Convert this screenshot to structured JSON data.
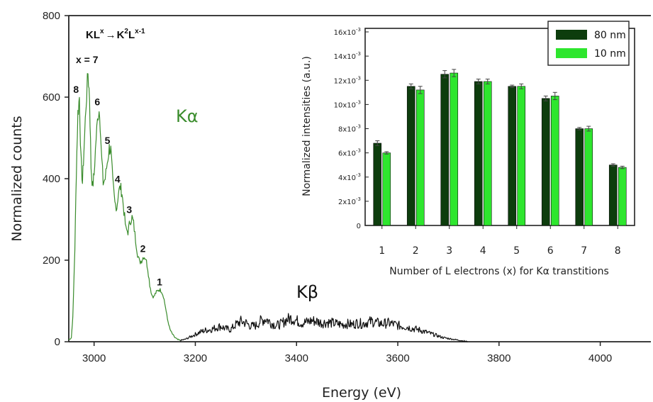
{
  "chart_data": [
    {
      "type": "line",
      "xlabel": "Energy (eV)",
      "ylabel": "Normalized counts",
      "xlim": [
        2950,
        4100
      ],
      "ylim": [
        0,
        800
      ],
      "x_ticks": [
        "3000",
        "3200",
        "3400",
        "3600",
        "3800",
        "4000"
      ],
      "y_ticks": [
        "0",
        "200",
        "400",
        "600",
        "800"
      ],
      "annotations": {
        "transition_prefix": "KL",
        "transition_prefix_sup": "x",
        "transition_arrow": "→",
        "transition_result": "K",
        "transition_result_sup": "2",
        "transition_result_mid": "L",
        "transition_result_sup2": "x-1",
        "x_equals": "x = 7",
        "ka_label": "Kα",
        "kb_label": "Kβ"
      },
      "peak_labels": [
        {
          "label": "8",
          "x": 2970,
          "y": 600
        },
        {
          "label": "6",
          "x": 3012,
          "y": 570
        },
        {
          "label": "5",
          "x": 3032,
          "y": 475
        },
        {
          "label": "4",
          "x": 3052,
          "y": 380
        },
        {
          "label": "3",
          "x": 3075,
          "y": 305
        },
        {
          "label": "2",
          "x": 3102,
          "y": 210
        },
        {
          "label": "1",
          "x": 3135,
          "y": 128
        }
      ],
      "series": [
        {
          "name": "Kα",
          "color": "#3a8c2c",
          "points": [
            [
              2950,
              5
            ],
            [
              2955,
              10
            ],
            [
              2958,
              60
            ],
            [
              2962,
              230
            ],
            [
              2965,
              420
            ],
            [
              2968,
              560
            ],
            [
              2971,
              600
            ],
            [
              2974,
              450
            ],
            [
              2977,
              390
            ],
            [
              2980,
              470
            ],
            [
              2984,
              580
            ],
            [
              2988,
              660
            ],
            [
              2991,
              600
            ],
            [
              2994,
              430
            ],
            [
              2997,
              380
            ],
            [
              3000,
              410
            ],
            [
              3004,
              500
            ],
            [
              3008,
              560
            ],
            [
              3011,
              570
            ],
            [
              3014,
              470
            ],
            [
              3018,
              390
            ],
            [
              3022,
              400
            ],
            [
              3026,
              440
            ],
            [
              3030,
              475
            ],
            [
              3033,
              470
            ],
            [
              3037,
              390
            ],
            [
              3041,
              340
            ],
            [
              3045,
              330
            ],
            [
              3048,
              365
            ],
            [
              3052,
              380
            ],
            [
              3055,
              365
            ],
            [
              3059,
              320
            ],
            [
              3063,
              275
            ],
            [
              3067,
              270
            ],
            [
              3071,
              295
            ],
            [
              3075,
              305
            ],
            [
              3078,
              290
            ],
            [
              3082,
              250
            ],
            [
              3086,
              215
            ],
            [
              3090,
              195
            ],
            [
              3094,
              200
            ],
            [
              3098,
              210
            ],
            [
              3102,
              205
            ],
            [
              3106,
              180
            ],
            [
              3110,
              140
            ],
            [
              3114,
              115
            ],
            [
              3118,
              110
            ],
            [
              3122,
              120
            ],
            [
              3128,
              128
            ],
            [
              3133,
              125
            ],
            [
              3137,
              112
            ],
            [
              3141,
              85
            ],
            [
              3145,
              55
            ],
            [
              3150,
              30
            ],
            [
              3155,
              18
            ],
            [
              3160,
              10
            ],
            [
              3165,
              5
            ],
            [
              3170,
              3
            ]
          ]
        },
        {
          "name": "Kβ",
          "color": "#111111",
          "points": [
            [
              3170,
              3
            ],
            [
              3180,
              6
            ],
            [
              3190,
              12
            ],
            [
              3200,
              18
            ],
            [
              3210,
              24
            ],
            [
              3220,
              28
            ],
            [
              3230,
              30
            ],
            [
              3240,
              34
            ],
            [
              3250,
              38
            ],
            [
              3260,
              32
            ],
            [
              3270,
              30
            ],
            [
              3280,
              42
            ],
            [
              3290,
              50
            ],
            [
              3300,
              46
            ],
            [
              3310,
              38
            ],
            [
              3320,
              40
            ],
            [
              3330,
              52
            ],
            [
              3340,
              56
            ],
            [
              3350,
              46
            ],
            [
              3360,
              40
            ],
            [
              3370,
              44
            ],
            [
              3380,
              54
            ],
            [
              3390,
              58
            ],
            [
              3400,
              52
            ],
            [
              3410,
              46
            ],
            [
              3420,
              48
            ],
            [
              3430,
              52
            ],
            [
              3440,
              50
            ],
            [
              3450,
              46
            ],
            [
              3460,
              48
            ],
            [
              3470,
              46
            ],
            [
              3480,
              44
            ],
            [
              3490,
              42
            ],
            [
              3500,
              44
            ],
            [
              3510,
              42
            ],
            [
              3520,
              46
            ],
            [
              3530,
              44
            ],
            [
              3540,
              48
            ],
            [
              3550,
              50
            ],
            [
              3560,
              46
            ],
            [
              3570,
              44
            ],
            [
              3580,
              46
            ],
            [
              3590,
              44
            ],
            [
              3600,
              40
            ],
            [
              3610,
              38
            ],
            [
              3620,
              36
            ],
            [
              3630,
              32
            ],
            [
              3640,
              30
            ],
            [
              3650,
              26
            ],
            [
              3660,
              22
            ],
            [
              3670,
              18
            ],
            [
              3680,
              14
            ],
            [
              3690,
              10
            ],
            [
              3700,
              8
            ],
            [
              3710,
              6
            ],
            [
              3720,
              4
            ],
            [
              3730,
              2
            ],
            [
              3738,
              0
            ]
          ]
        }
      ]
    },
    {
      "type": "bar",
      "xlabel": "Number of L electrons (x) for Kα transtitions",
      "ylabel": "Normalized intensities (a.u.)",
      "ylim": [
        0,
        0.016
      ],
      "y_tick_values": [
        0,
        0.002,
        0.004,
        0.006,
        0.008,
        0.01,
        0.012,
        0.014,
        0.016
      ],
      "y_tick_labels": [
        {
          "mantissa": "0",
          "exp": ""
        },
        {
          "mantissa": "2x10",
          "exp": "-3"
        },
        {
          "mantissa": "4x10",
          "exp": "-3"
        },
        {
          "mantissa": "6x10",
          "exp": "-3"
        },
        {
          "mantissa": "8x10",
          "exp": "-3"
        },
        {
          "mantissa": "10x10",
          "exp": "-3"
        },
        {
          "mantissa": "12x10",
          "exp": "-3"
        },
        {
          "mantissa": "14x10",
          "exp": "-3"
        },
        {
          "mantissa": "16x10",
          "exp": "-3"
        }
      ],
      "categories": [
        "1",
        "2",
        "3",
        "4",
        "5",
        "6",
        "7",
        "8"
      ],
      "legend_position": "top-right",
      "series": [
        {
          "name": "80 nm",
          "color": "#0d3d0d",
          "values": [
            0.0068,
            0.0115,
            0.0125,
            0.0119,
            0.0115,
            0.0105,
            0.008,
            0.005
          ],
          "errors": [
            0.0002,
            0.0002,
            0.0003,
            0.0002,
            0.0001,
            0.0002,
            0.0001,
            0.0001
          ]
        },
        {
          "name": "10 nm",
          "color": "#2ee62e",
          "values": [
            0.006,
            0.0112,
            0.0126,
            0.0119,
            0.0115,
            0.0107,
            0.008,
            0.0048
          ],
          "errors": [
            0.0001,
            0.0003,
            0.0003,
            0.0002,
            0.0002,
            0.0003,
            0.0002,
            0.0001
          ]
        }
      ]
    }
  ]
}
